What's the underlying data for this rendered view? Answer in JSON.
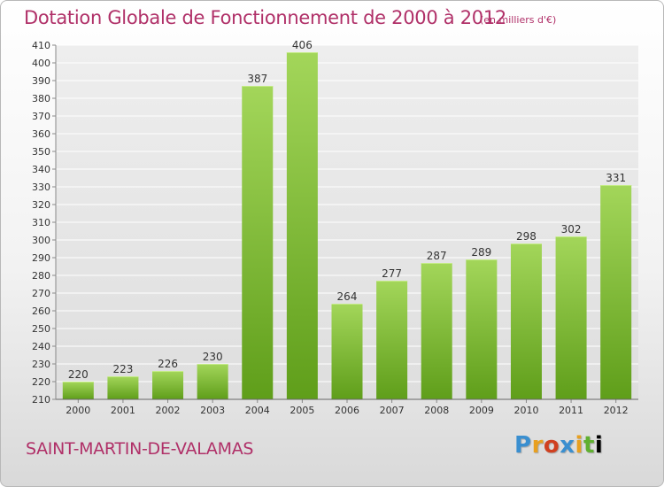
{
  "header": {
    "title": "Dotation Globale de Fonctionnement de 2000 à 2012",
    "subtitle": "(en milliers d'€)"
  },
  "footer": {
    "commune": "SAINT-MARTIN-DE-VALAMAS",
    "logo": "Proxiti"
  },
  "colors": {
    "title": "#b03068",
    "bar_light": "#a3d65a",
    "bar_dark": "#5f9e1a",
    "grid": "#ffffff"
  },
  "chart_data": {
    "type": "bar",
    "categories": [
      "2000",
      "2001",
      "2002",
      "2003",
      "2004",
      "2005",
      "2006",
      "2007",
      "2008",
      "2009",
      "2010",
      "2011",
      "2012"
    ],
    "values": [
      220,
      223,
      226,
      230,
      387,
      406,
      264,
      277,
      287,
      289,
      298,
      302,
      331
    ],
    "title": "Dotation Globale de Fonctionnement de 2000 à 2012",
    "subtitle": "(en milliers d'€)",
    "xlabel": "",
    "ylabel": "",
    "ylim": [
      210,
      410
    ],
    "ytick_step": 10,
    "grid": true,
    "data_labels": true
  }
}
